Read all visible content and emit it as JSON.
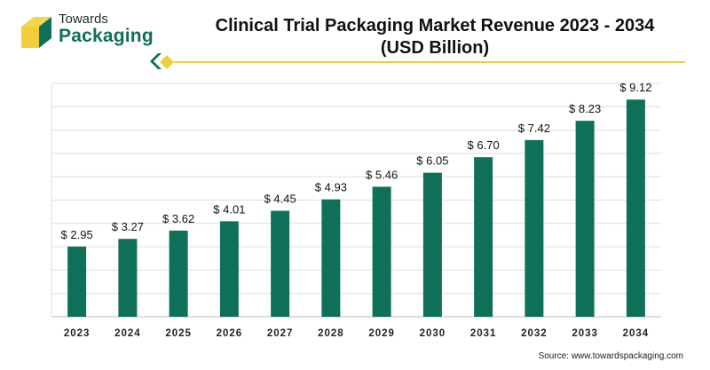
{
  "brand": {
    "line1": "Towards",
    "line2": "Packaging",
    "accent_green": "#0e7059",
    "accent_yellow": "#f2cf3a"
  },
  "title_line1": "Clinical Trial Packaging Market Revenue 2023 - 2034",
  "title_line2": "(USD Billion)",
  "source": "Source: www.towardspackaging.com",
  "chart_data": {
    "type": "bar",
    "categories": [
      "2023",
      "2024",
      "2025",
      "2026",
      "2027",
      "2028",
      "2029",
      "2030",
      "2031",
      "2032",
      "2033",
      "2034"
    ],
    "values": [
      2.95,
      3.27,
      3.62,
      4.01,
      4.45,
      4.93,
      5.46,
      6.05,
      6.7,
      7.42,
      8.23,
      9.12
    ],
    "value_labels": [
      "$ 2.95",
      "$ 3.27",
      "$ 3.62",
      "$ 4.01",
      "$ 4.45",
      "$ 4.93",
      "$ 5.46",
      "$ 6.05",
      "$ 6.70",
      "$ 7.42",
      "$ 8.23",
      "$ 9.12"
    ],
    "title": "Clinical Trial Packaging Market Revenue 2023 - 2034 (USD Billion)",
    "xlabel": "",
    "ylabel": "",
    "ylim": [
      0,
      9.8
    ],
    "grid": true,
    "bar_color": "#0e7059",
    "grid_color": "#dedede"
  }
}
